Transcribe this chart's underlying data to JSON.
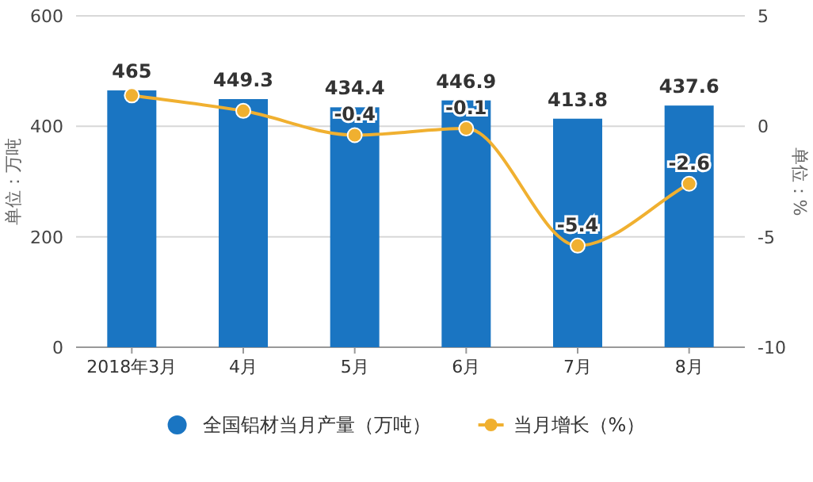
{
  "chart_data": {
    "type": "bar",
    "categories": [
      "2018年3月",
      "4月",
      "5月",
      "6月",
      "7月",
      "8月"
    ],
    "series": [
      {
        "name": "全国铝材当月产量（万吨）",
        "color": "#1a75c2",
        "values": [
          465,
          449.3,
          434.4,
          446.9,
          413.8,
          437.6
        ],
        "value_labels": [
          "465",
          "449.3",
          "434.4",
          "446.9",
          "413.8",
          "437.6"
        ]
      },
      {
        "name": "当月增长（%）",
        "color": "#f0b030",
        "type": "line",
        "axis": "y2",
        "marker": "circle",
        "values": [
          1.4,
          0.7,
          -0.4,
          -0.1,
          -5.4,
          -2.6
        ],
        "value_labels": [
          null,
          null,
          "-0.4",
          "-0.1",
          "-5.4",
          "-2.6"
        ]
      }
    ],
    "ylabel": "单位：万吨",
    "y2label": "单位：%",
    "ylim": [
      0,
      600
    ],
    "yticks": [
      0,
      200,
      400,
      600
    ],
    "y2lim": [
      -10,
      5
    ],
    "y2ticks": [
      -10,
      -5,
      0,
      5
    ],
    "grid": "y",
    "legend": "bottom"
  }
}
